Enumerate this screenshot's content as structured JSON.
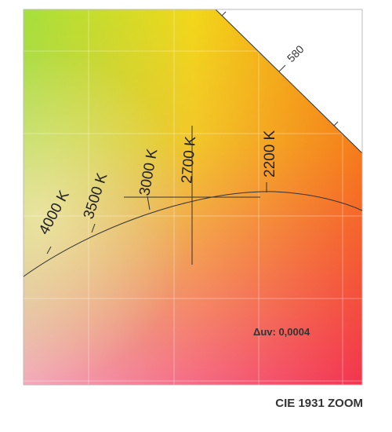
{
  "diagram": {
    "isotherms": [
      "4000 K",
      "3500 K",
      "3000 K",
      "2700 K",
      "2200 K"
    ],
    "wavelength_label": "580",
    "delta_uv": "Δuv: 0,0004",
    "caption": "CIE 1931 ZOOM"
  }
}
